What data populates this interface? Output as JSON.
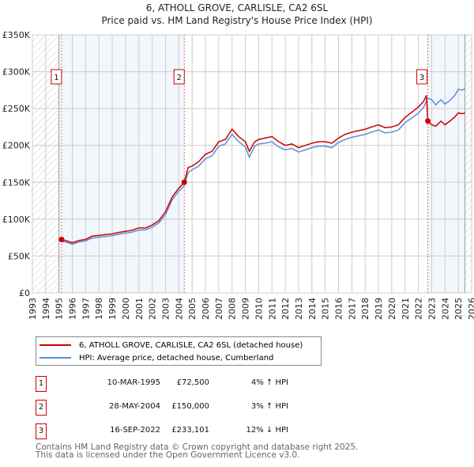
{
  "chart_data": {
    "type": "line",
    "title": "6, ATHOLL GROVE, CARLISLE, CA2 6SL",
    "subtitle": "Price paid vs. HM Land Registry's House Price Index (HPI)",
    "xlim": [
      1993,
      2026
    ],
    "ylim": [
      0,
      350000
    ],
    "yticks": [
      0,
      50000,
      100000,
      150000,
      200000,
      250000,
      300000,
      350000
    ],
    "ytick_labels": [
      "£0",
      "£50K",
      "£100K",
      "£150K",
      "£200K",
      "£250K",
      "£300K",
      "£350K"
    ],
    "xticks": [
      1993,
      1994,
      1995,
      1996,
      1997,
      1998,
      1999,
      2000,
      2001,
      2002,
      2003,
      2004,
      2005,
      2006,
      2007,
      2008,
      2009,
      2010,
      2011,
      2012,
      2013,
      2014,
      2015,
      2016,
      2017,
      2018,
      2019,
      2020,
      2021,
      2022,
      2023,
      2024,
      2025,
      2026
    ],
    "grid": true,
    "hatch_ranges": [
      [
        1993,
        1995
      ],
      [
        2025.5,
        2026
      ]
    ],
    "shaded_ranges": [
      [
        1995.19,
        2004.41
      ],
      [
        2022.71,
        2025.5
      ]
    ],
    "series": [
      {
        "name": "6, ATHOLL GROVE, CARLISLE, CA2 6SL (detached house)",
        "color": "#cc0000",
        "x": [
          1995.19,
          1995.5,
          1996,
          1996.5,
          1997,
          1997.5,
          1998,
          1998.5,
          1999,
          1999.5,
          2000,
          2000.5,
          2001,
          2001.5,
          2002,
          2002.5,
          2003,
          2003.5,
          2004,
          2004.41,
          2004.7,
          2005,
          2005.5,
          2006,
          2006.5,
          2007,
          2007.5,
          2008,
          2008.5,
          2009,
          2009.3,
          2009.7,
          2010,
          2010.5,
          2011,
          2011.5,
          2012,
          2012.5,
          2013,
          2013.5,
          2014,
          2014.5,
          2015,
          2015.5,
          2016,
          2016.5,
          2017,
          2017.5,
          2018,
          2018.5,
          2019,
          2019.5,
          2020,
          2020.5,
          2021,
          2021.5,
          2022,
          2022.4,
          2022.6,
          2022.71,
          2023,
          2023.3,
          2023.7,
          2024,
          2024.3,
          2024.7,
          2025,
          2025.3,
          2025.5
        ],
        "y": [
          72500,
          71000,
          68000,
          71000,
          72500,
          77000,
          78000,
          79000,
          80000,
          82000,
          83500,
          85000,
          88000,
          88000,
          92000,
          98000,
          110000,
          130000,
          142000,
          150000,
          170000,
          172000,
          178000,
          188000,
          192000,
          205000,
          208000,
          222000,
          212000,
          205000,
          192000,
          205000,
          208000,
          210000,
          212000,
          205000,
          200000,
          202000,
          197000,
          200000,
          203000,
          205000,
          205000,
          203000,
          210000,
          215000,
          218000,
          220000,
          222000,
          225000,
          228000,
          224000,
          225000,
          228000,
          238000,
          245000,
          252000,
          260000,
          268000,
          233101,
          228000,
          226000,
          233000,
          228000,
          232000,
          238000,
          244000,
          243000,
          244000
        ]
      },
      {
        "name": "HPI: Average price, detached house, Cumberland",
        "color": "#5b8fd4",
        "x": [
          1995.19,
          1995.5,
          1996,
          1996.5,
          1997,
          1997.5,
          1998,
          1998.5,
          1999,
          1999.5,
          2000,
          2000.5,
          2001,
          2001.5,
          2002,
          2002.5,
          2003,
          2003.5,
          2004,
          2004.41,
          2004.7,
          2005,
          2005.5,
          2006,
          2006.5,
          2007,
          2007.5,
          2008,
          2008.5,
          2009,
          2009.3,
          2009.7,
          2010,
          2010.5,
          2011,
          2011.5,
          2012,
          2012.5,
          2013,
          2013.5,
          2014,
          2014.5,
          2015,
          2015.5,
          2016,
          2016.5,
          2017,
          2017.5,
          2018,
          2018.5,
          2019,
          2019.5,
          2020,
          2020.5,
          2021,
          2021.5,
          2022,
          2022.4,
          2022.6,
          2022.71,
          2023,
          2023.3,
          2023.7,
          2024,
          2024.3,
          2024.7,
          2025,
          2025.3,
          2025.5
        ],
        "y": [
          69500,
          69000,
          66000,
          69000,
          70500,
          74500,
          75500,
          76500,
          77500,
          79500,
          81000,
          82500,
          85000,
          85500,
          89000,
          95000,
          106000,
          126000,
          138000,
          145500,
          163000,
          167000,
          172000,
          182000,
          186000,
          199000,
          202000,
          215000,
          205000,
          198000,
          184000,
          199000,
          202000,
          203000,
          205000,
          198000,
          194000,
          196000,
          191000,
          194000,
          197000,
          199000,
          199000,
          197000,
          204000,
          208000,
          211000,
          213000,
          215000,
          218000,
          221000,
          217000,
          218000,
          221000,
          231000,
          237000,
          244000,
          252000,
          260000,
          264000,
          262000,
          255000,
          262000,
          256000,
          260000,
          267000,
          276000,
          275000,
          277000
        ]
      }
    ],
    "markers": [
      {
        "label": "1",
        "x": 1995.19,
        "y": 72500
      },
      {
        "label": "2",
        "x": 2004.41,
        "y": 150000
      },
      {
        "label": "3",
        "x": 2022.71,
        "y": 233101
      }
    ]
  },
  "legend": {
    "entries": [
      "6, ATHOLL GROVE, CARLISLE, CA2 6SL (detached house)",
      "HPI: Average price, detached house, Cumberland"
    ]
  },
  "transactions": [
    {
      "num": "1",
      "date": "10-MAR-1995",
      "price": "£72,500",
      "hpi": "4% ↑ HPI"
    },
    {
      "num": "2",
      "date": "28-MAY-2004",
      "price": "£150,000",
      "hpi": "3% ↑ HPI"
    },
    {
      "num": "3",
      "date": "16-SEP-2022",
      "price": "£233,101",
      "hpi": "12% ↓ HPI"
    }
  ],
  "footer": {
    "line1": "Contains HM Land Registry data © Crown copyright and database right 2025.",
    "line2": "This data is licensed under the Open Government Licence v3.0."
  }
}
